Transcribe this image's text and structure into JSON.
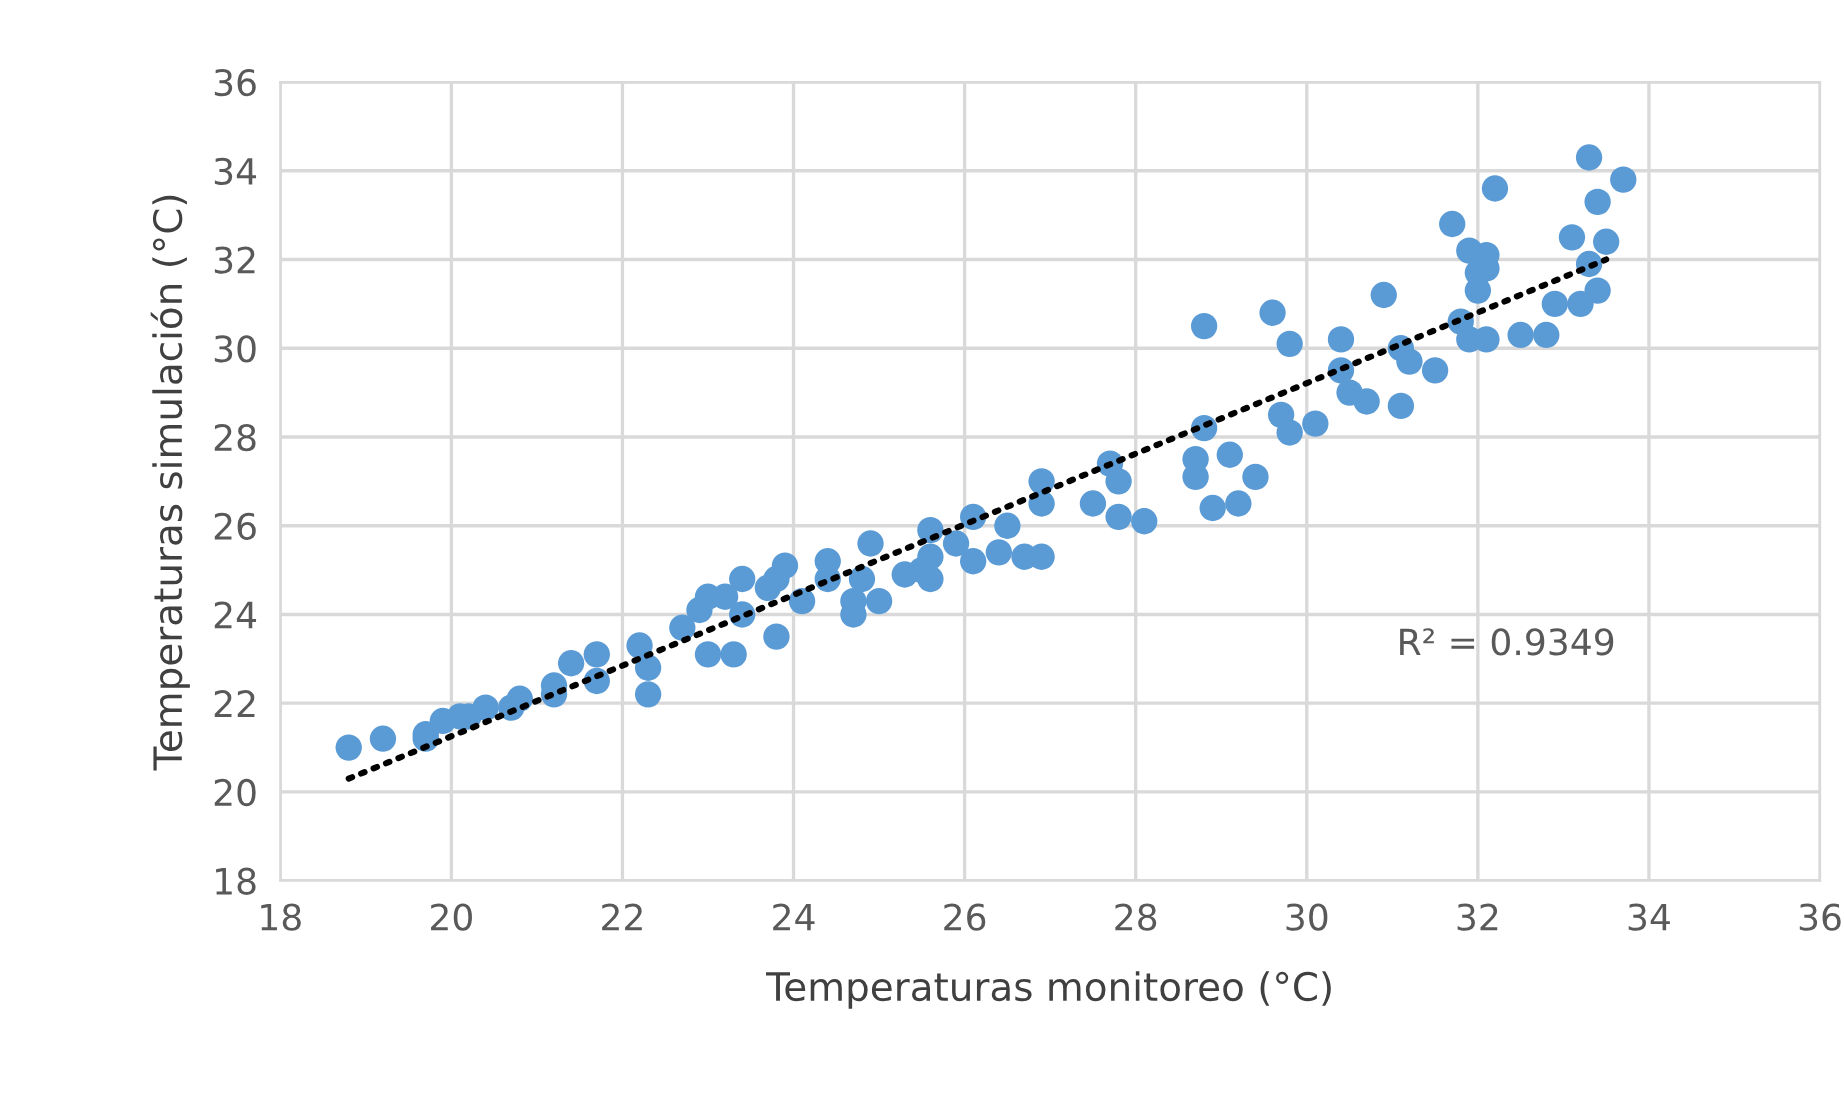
{
  "chart_data": {
    "type": "scatter",
    "xlabel": "Temperaturas monitoreo (°C)",
    "ylabel": "Temperaturas simulación (°C)",
    "xlim": [
      18,
      36
    ],
    "xticks": [
      18,
      20,
      22,
      24,
      26,
      28,
      30,
      32,
      34,
      36
    ],
    "ylim": [
      18,
      36
    ],
    "yticks": [
      18,
      20,
      22,
      24,
      26,
      28,
      30,
      32,
      34,
      36
    ],
    "grid": true,
    "marker": "circle",
    "annotations": [
      "R² = 0.9349"
    ],
    "series": [
      {
        "color": "#5b9bd5",
        "x": [
          18.8,
          19.2,
          19.7,
          19.7,
          19.9,
          20.1,
          20.2,
          20.4,
          20.7,
          20.8,
          21.2,
          21.2,
          21.4,
          21.7,
          21.7,
          22.2,
          22.3,
          22.3,
          22.7,
          22.9,
          23.0,
          23.0,
          23.2,
          23.3,
          23.4,
          23.4,
          23.7,
          23.8,
          23.8,
          23.9,
          24.1,
          24.4,
          24.4,
          24.7,
          24.7,
          24.8,
          24.9,
          25.0,
          25.3,
          25.5,
          25.6,
          25.6,
          25.6,
          25.9,
          26.1,
          26.1,
          26.4,
          26.5,
          26.7,
          26.9,
          26.9,
          26.9,
          27.5,
          27.7,
          27.8,
          27.8,
          28.1,
          28.7,
          28.7,
          28.8,
          28.8,
          28.9,
          29.1,
          29.2,
          29.4,
          29.6,
          29.8,
          29.7,
          29.8,
          30.1,
          30.4,
          30.4,
          30.5,
          30.7,
          30.9,
          31.1,
          31.1,
          31.2,
          31.5,
          31.7,
          31.8,
          31.9,
          31.9,
          32.0,
          32.0,
          32.1,
          32.1,
          32.1,
          32.2,
          32.5,
          32.8,
          32.9,
          33.1,
          33.2,
          33.3,
          33.3,
          33.4,
          33.4,
          33.5,
          33.7
        ],
        "values": [
          21.0,
          21.2,
          21.3,
          21.2,
          21.6,
          21.7,
          21.7,
          21.9,
          21.9,
          22.1,
          22.2,
          22.4,
          22.9,
          22.5,
          23.1,
          23.3,
          22.2,
          22.8,
          23.7,
          24.1,
          24.4,
          23.1,
          24.4,
          23.1,
          24.8,
          24.0,
          24.6,
          24.8,
          23.5,
          25.1,
          24.3,
          24.8,
          25.2,
          24.3,
          24.0,
          24.8,
          25.6,
          24.3,
          24.9,
          25.0,
          25.3,
          25.9,
          24.8,
          25.6,
          25.2,
          26.2,
          25.4,
          26.0,
          25.3,
          27.0,
          26.5,
          25.3,
          26.5,
          27.4,
          26.2,
          27.0,
          26.1,
          27.5,
          27.1,
          30.5,
          28.2,
          26.4,
          27.6,
          26.5,
          27.1,
          30.8,
          30.1,
          28.5,
          28.1,
          28.3,
          29.5,
          30.2,
          29.0,
          28.8,
          31.2,
          30.0,
          28.7,
          29.7,
          29.5,
          32.8,
          30.6,
          30.2,
          32.2,
          31.3,
          31.7,
          30.2,
          32.1,
          31.8,
          33.6,
          30.3,
          30.3,
          31.0,
          32.5,
          31.0,
          34.3,
          31.9,
          31.3,
          33.3,
          32.4,
          33.8
        ]
      },
      {
        "type": "line",
        "color": "#000000",
        "line_style": "dotted",
        "marker": "none",
        "x": [
          18.8,
          33.5
        ],
        "values": [
          20.3,
          32.0
        ]
      }
    ]
  }
}
